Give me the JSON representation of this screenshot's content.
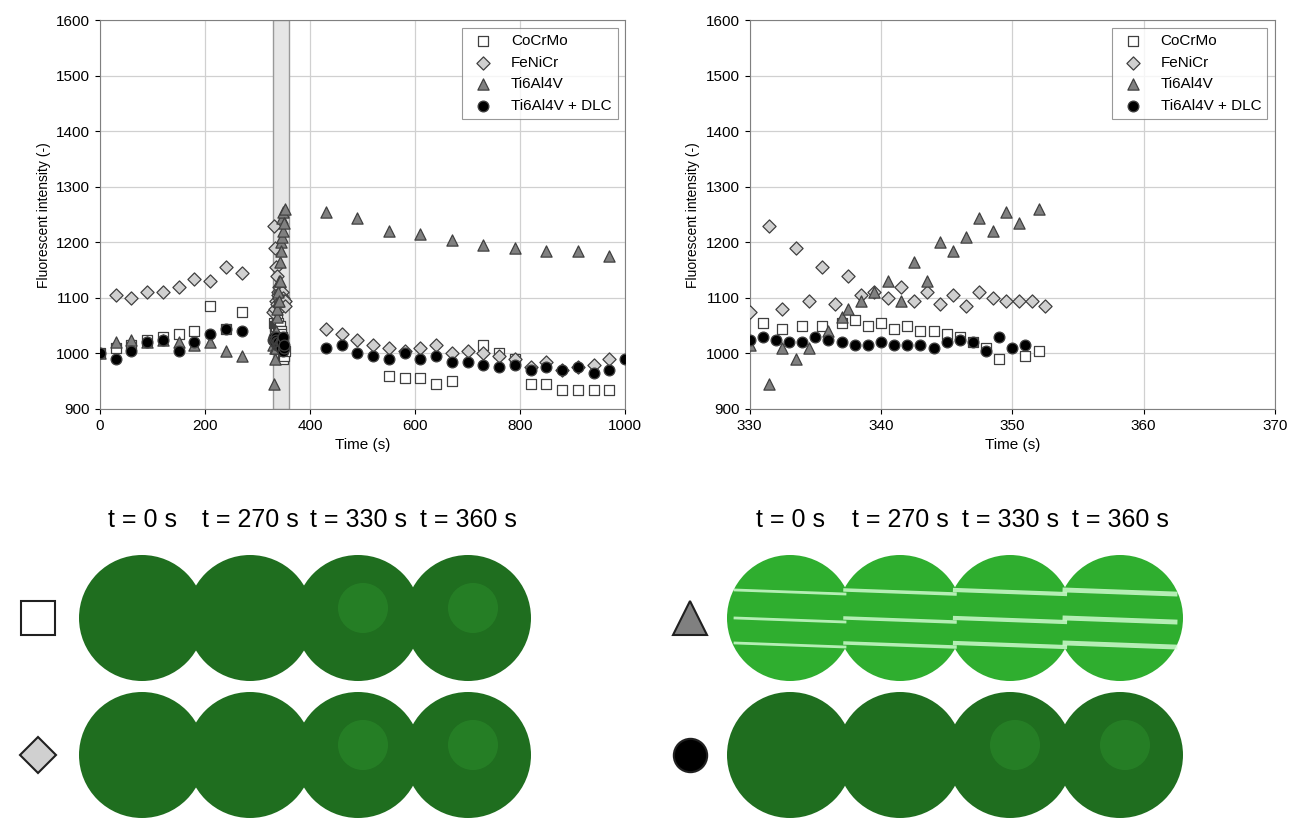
{
  "chart_data": [
    {
      "type": "scatter",
      "x_label": "Time (s)",
      "y_label": "Fluorescent intensity (-)",
      "xlim": [
        0,
        1000
      ],
      "xticks": [
        0,
        200,
        400,
        600,
        800,
        1000
      ],
      "ylim": [
        900,
        1600
      ],
      "yticks": [
        900,
        1000,
        1100,
        1200,
        1300,
        1400,
        1500,
        1600
      ],
      "grid": true,
      "legend": "upper right",
      "shaded_range": [
        330,
        360
      ],
      "series": [
        {
          "name": "CoCrMo",
          "color": "#ffffff",
          "marker": "square",
          "x": [
            0,
            30,
            60,
            90,
            120,
            150,
            180,
            210,
            240,
            270,
            331,
            332.5,
            334,
            335.5,
            337,
            338,
            339,
            340,
            341,
            342,
            343,
            344,
            345,
            346,
            347,
            348,
            349,
            351,
            352,
            550,
            580,
            610,
            640,
            670,
            730,
            760,
            790,
            820,
            850,
            880,
            910,
            940,
            970
          ],
          "values": [
            1000,
            1010,
            1015,
            1025,
            1030,
            1035,
            1040,
            1085,
            1045,
            1075,
            1055,
            1045,
            1050,
            1050,
            1055,
            1060,
            1050,
            1055,
            1045,
            1050,
            1040,
            1040,
            1035,
            1030,
            1020,
            1010,
            990,
            995,
            1005,
            960,
            955,
            955,
            945,
            950,
            1015,
            1000,
            990,
            945,
            945,
            935,
            935,
            935,
            935
          ]
        },
        {
          "name": "FeNiCr",
          "color": "#d0d0d0",
          "marker": "diamond",
          "x": [
            30,
            60,
            90,
            120,
            150,
            180,
            210,
            240,
            270,
            330,
            331.5,
            332.5,
            333.5,
            334.5,
            335.5,
            336.5,
            337.5,
            338.5,
            339.5,
            340.5,
            341.5,
            342.5,
            343.5,
            344.5,
            345.5,
            346.5,
            347.5,
            348.5,
            349.5,
            350.5,
            351.5,
            352.5,
            430,
            460,
            490,
            520,
            550,
            580,
            610,
            640,
            670,
            700,
            730,
            760,
            790,
            820,
            850,
            880,
            910,
            940,
            970
          ],
          "values": [
            1105,
            1100,
            1110,
            1110,
            1120,
            1135,
            1130,
            1155,
            1145,
            1075,
            1230,
            1080,
            1190,
            1095,
            1155,
            1090,
            1140,
            1105,
            1110,
            1100,
            1120,
            1095,
            1110,
            1090,
            1105,
            1085,
            1110,
            1100,
            1095,
            1095,
            1095,
            1085,
            1045,
            1035,
            1025,
            1015,
            1010,
            1005,
            1010,
            1015,
            1000,
            1005,
            1000,
            995,
            990,
            975,
            985,
            970,
            975,
            980,
            990
          ]
        },
        {
          "name": "Ti6Al4V",
          "color": "#808080",
          "marker": "triangle",
          "x": [
            0,
            30,
            60,
            90,
            120,
            150,
            180,
            210,
            240,
            270,
            330,
            331.5,
            332.5,
            333.5,
            334.5,
            336,
            337,
            337.5,
            338.5,
            339.5,
            340.5,
            341.5,
            342.5,
            343.5,
            344.5,
            345.5,
            346.5,
            347.5,
            348.5,
            349.5,
            350.5,
            352,
            430,
            490,
            550,
            610,
            670,
            730,
            790,
            850,
            910,
            970
          ],
          "values": [
            1000,
            1020,
            1025,
            1020,
            1025,
            1020,
            1015,
            1020,
            1005,
            995,
            1015,
            945,
            1010,
            990,
            1010,
            1040,
            1065,
            1080,
            1095,
            1110,
            1130,
            1095,
            1165,
            1130,
            1200,
            1185,
            1210,
            1245,
            1220,
            1255,
            1235,
            1260,
            1255,
            1245,
            1220,
            1215,
            1205,
            1195,
            1190,
            1185,
            1185,
            1175
          ]
        },
        {
          "name": "Ti6Al4V + DLC",
          "color": "#000000",
          "marker": "circle",
          "x": [
            0,
            30,
            60,
            90,
            120,
            150,
            180,
            210,
            240,
            270,
            330,
            331,
            332,
            333,
            334,
            335,
            336,
            337,
            338,
            339,
            340,
            341,
            342,
            343,
            344,
            345,
            346,
            347,
            348,
            349,
            350,
            351,
            430,
            460,
            490,
            520,
            550,
            580,
            610,
            640,
            670,
            700,
            730,
            760,
            790,
            820,
            850,
            880,
            910,
            940,
            970,
            1000
          ],
          "values": [
            1000,
            990,
            1005,
            1020,
            1025,
            1005,
            1020,
            1035,
            1045,
            1040,
            1025,
            1030,
            1025,
            1020,
            1020,
            1030,
            1025,
            1020,
            1015,
            1015,
            1020,
            1015,
            1015,
            1015,
            1010,
            1020,
            1025,
            1020,
            1005,
            1030,
            1010,
            1015,
            1010,
            1015,
            1000,
            995,
            990,
            1000,
            990,
            995,
            985,
            985,
            980,
            975,
            980,
            970,
            975,
            970,
            975,
            965,
            970,
            990
          ]
        }
      ]
    },
    {
      "type": "scatter",
      "x_label": "Time (s)",
      "y_label": "Fluorescent intensity (-)",
      "xlim": [
        330,
        370
      ],
      "xticks": [
        330,
        340,
        350,
        360,
        370
      ],
      "ylim": [
        900,
        1600
      ],
      "yticks": [
        900,
        1000,
        1100,
        1200,
        1300,
        1400,
        1500,
        1600
      ],
      "grid": true,
      "legend": "upper right",
      "series": [
        {
          "name": "CoCrMo",
          "color": "#ffffff",
          "marker": "square",
          "x": [
            331,
            332.5,
            334,
            335.5,
            337,
            338,
            339,
            340,
            341,
            342,
            343,
            344,
            345,
            346,
            347,
            348,
            349,
            351,
            352
          ],
          "values": [
            1055,
            1045,
            1050,
            1050,
            1055,
            1060,
            1050,
            1055,
            1045,
            1050,
            1040,
            1040,
            1035,
            1030,
            1020,
            1010,
            990,
            995,
            1005
          ]
        },
        {
          "name": "FeNiCr",
          "color": "#d0d0d0",
          "marker": "diamond",
          "x": [
            330,
            331.5,
            332.5,
            333.5,
            334.5,
            335.5,
            336.5,
            337.5,
            338.5,
            339.5,
            340.5,
            341.5,
            342.5,
            343.5,
            344.5,
            345.5,
            346.5,
            347.5,
            348.5,
            349.5,
            350.5,
            351.5,
            352.5
          ],
          "values": [
            1075,
            1230,
            1080,
            1190,
            1095,
            1155,
            1090,
            1140,
            1105,
            1110,
            1100,
            1120,
            1095,
            1110,
            1090,
            1105,
            1085,
            1110,
            1100,
            1095,
            1095,
            1095,
            1085
          ]
        },
        {
          "name": "Ti6Al4V",
          "color": "#808080",
          "marker": "triangle",
          "x": [
            330,
            331.5,
            332.5,
            333.5,
            334.5,
            336,
            337,
            337.5,
            338.5,
            339.5,
            340.5,
            341.5,
            342.5,
            343.5,
            344.5,
            345.5,
            346.5,
            347.5,
            348.5,
            349.5,
            350.5,
            352
          ],
          "values": [
            1015,
            945,
            1010,
            990,
            1010,
            1040,
            1065,
            1080,
            1095,
            1110,
            1130,
            1095,
            1165,
            1130,
            1200,
            1185,
            1210,
            1245,
            1220,
            1255,
            1235,
            1260
          ]
        },
        {
          "name": "Ti6Al4V + DLC",
          "color": "#000000",
          "marker": "circle",
          "x": [
            330,
            331,
            332,
            333,
            334,
            335,
            336,
            337,
            338,
            339,
            340,
            341,
            342,
            343,
            344,
            345,
            346,
            347,
            348,
            349,
            350,
            351
          ],
          "values": [
            1025,
            1030,
            1025,
            1020,
            1020,
            1030,
            1025,
            1020,
            1015,
            1015,
            1020,
            1015,
            1015,
            1015,
            1010,
            1020,
            1025,
            1020,
            1005,
            1030,
            1010,
            1015
          ]
        }
      ]
    }
  ],
  "image_panels": [
    {
      "time_labels": [
        "t = 0 s",
        "t = 270 s",
        "t = 330 s",
        "t = 360 s"
      ],
      "rows": [
        "CoCrMo",
        "FeNiCr"
      ]
    },
    {
      "time_labels": [
        "t = 0 s",
        "t = 270 s",
        "t = 330 s",
        "t = 360 s"
      ],
      "rows": [
        "Ti6Al4V",
        "Ti6Al4V + DLC"
      ]
    }
  ]
}
